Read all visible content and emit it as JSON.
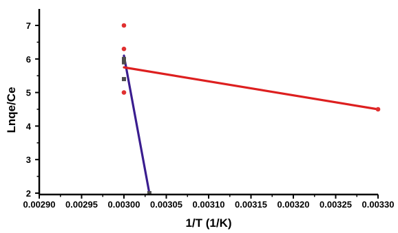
{
  "chart_data": {
    "type": "scatter",
    "title": "",
    "xlabel": "1/T (1/K)",
    "ylabel": "Lnqe/Ce",
    "xlim": [
      0.0029,
      0.0033
    ],
    "ylim": [
      2,
      7.5
    ],
    "x_ticks": [
      "0.00290",
      "0.00295",
      "0.00300",
      "0.00305",
      "0.00310",
      "0.00315",
      "0.00320",
      "0.00325",
      "0.00330"
    ],
    "y_ticks": [
      "2",
      "3",
      "4",
      "5",
      "6",
      "7"
    ],
    "grid": false,
    "legend": "none",
    "series": [
      {
        "marker": "square",
        "color": "#4d4d4d",
        "points": [
          {
            "x": 0.003,
            "y": 6.0
          },
          {
            "x": 0.003,
            "y": 5.9
          },
          {
            "x": 0.003,
            "y": 5.4
          },
          {
            "x": 0.00303,
            "y": 2.0
          }
        ]
      },
      {
        "marker": "circle",
        "color": "#e03030",
        "points": [
          {
            "x": 0.003,
            "y": 7.0
          },
          {
            "x": 0.003,
            "y": 6.3
          },
          {
            "x": 0.003,
            "y": 5.0
          },
          {
            "x": 0.0033,
            "y": 4.5
          }
        ]
      }
    ],
    "fit_lines": [
      {
        "color": "#3a1d8f",
        "x": [
          0.003,
          0.00303
        ],
        "y": [
          6.1,
          2.0
        ]
      },
      {
        "color": "#dd1f1f",
        "x": [
          0.003,
          0.0033
        ],
        "y": [
          5.75,
          4.5
        ]
      }
    ]
  }
}
